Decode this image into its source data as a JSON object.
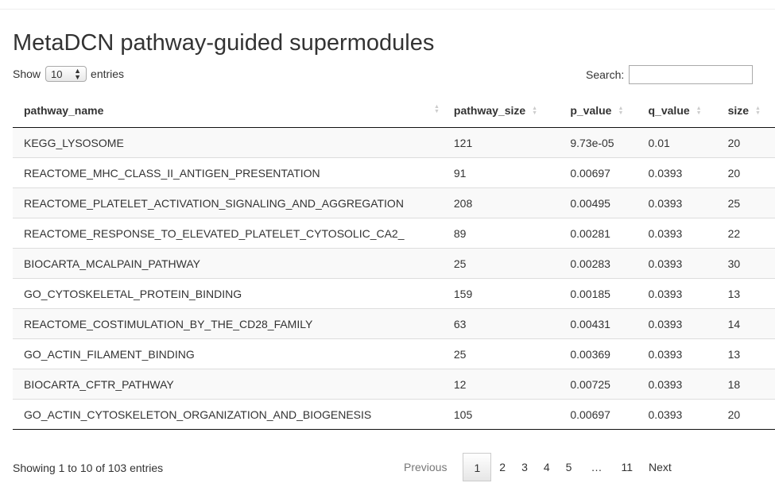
{
  "page": {
    "title": "MetaDCN pathway-guided supermodules"
  },
  "length_control": {
    "prefix": "Show",
    "value": "10",
    "suffix": "entries"
  },
  "search": {
    "label": "Search:"
  },
  "table": {
    "columns": [
      "pathway_name",
      "pathway_size",
      "p_value",
      "q_value",
      "size"
    ],
    "rows": [
      [
        "KEGG_LYSOSOME",
        "121",
        "9.73e-05",
        "0.01",
        "20"
      ],
      [
        "REACTOME_MHC_CLASS_II_ANTIGEN_PRESENTATION",
        "91",
        "0.00697",
        "0.0393",
        "20"
      ],
      [
        "REACTOME_PLATELET_ACTIVATION_SIGNALING_AND_AGGREGATION",
        "208",
        "0.00495",
        "0.0393",
        "25"
      ],
      [
        "REACTOME_RESPONSE_TO_ELEVATED_PLATELET_CYTOSOLIC_CA2_",
        "89",
        "0.00281",
        "0.0393",
        "22"
      ],
      [
        "BIOCARTA_MCALPAIN_PATHWAY",
        "25",
        "0.00283",
        "0.0393",
        "30"
      ],
      [
        "GO_CYTOSKELETAL_PROTEIN_BINDING",
        "159",
        "0.00185",
        "0.0393",
        "13"
      ],
      [
        "REACTOME_COSTIMULATION_BY_THE_CD28_FAMILY",
        "63",
        "0.00431",
        "0.0393",
        "14"
      ],
      [
        "GO_ACTIN_FILAMENT_BINDING",
        "25",
        "0.00369",
        "0.0393",
        "13"
      ],
      [
        "BIOCARTA_CFTR_PATHWAY",
        "12",
        "0.00725",
        "0.0393",
        "18"
      ],
      [
        "GO_ACTIN_CYTOSKELETON_ORGANIZATION_AND_BIOGENESIS",
        "105",
        "0.00697",
        "0.0393",
        "20"
      ]
    ]
  },
  "footer": {
    "info": "Showing 1 to 10 of 103 entries",
    "pagination": {
      "previous": "Previous",
      "pages": [
        "1",
        "2",
        "3",
        "4",
        "5",
        "…",
        "11"
      ],
      "current": "1",
      "next": "Next"
    }
  },
  "icons": {
    "sort": "sort-both-icon",
    "select_arrow": "up-down-arrow-icon"
  }
}
